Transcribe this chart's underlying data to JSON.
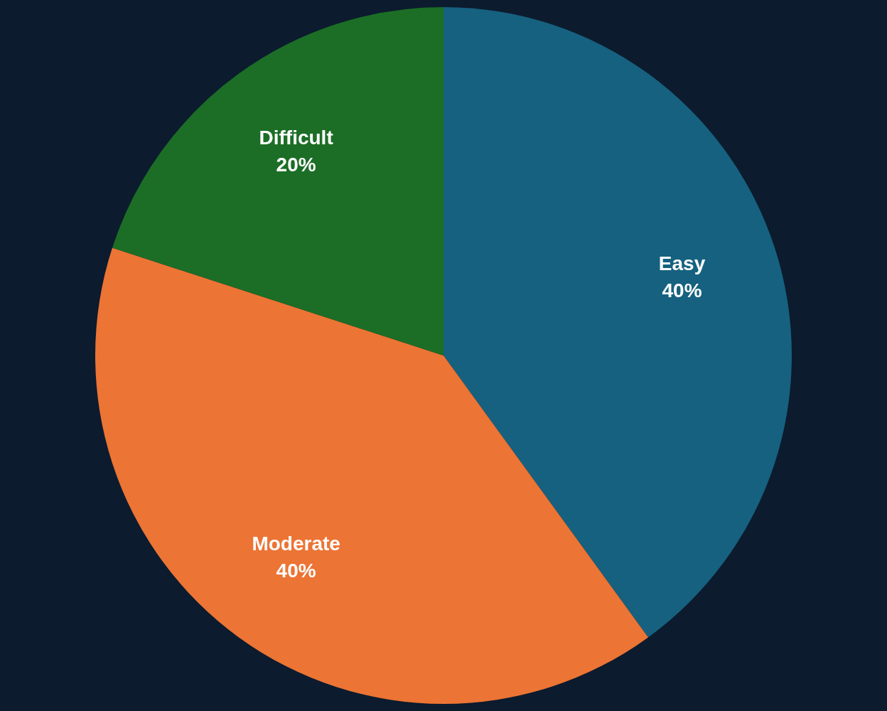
{
  "chart_data": {
    "type": "pie",
    "categories": [
      "Easy",
      "Moderate",
      "Difficult"
    ],
    "values": [
      40,
      40,
      20
    ],
    "value_labels": [
      "40%",
      "40%",
      "20%"
    ],
    "colors": [
      "#16617f",
      "#ec7434",
      "#1c6e26"
    ],
    "legend": false
  }
}
